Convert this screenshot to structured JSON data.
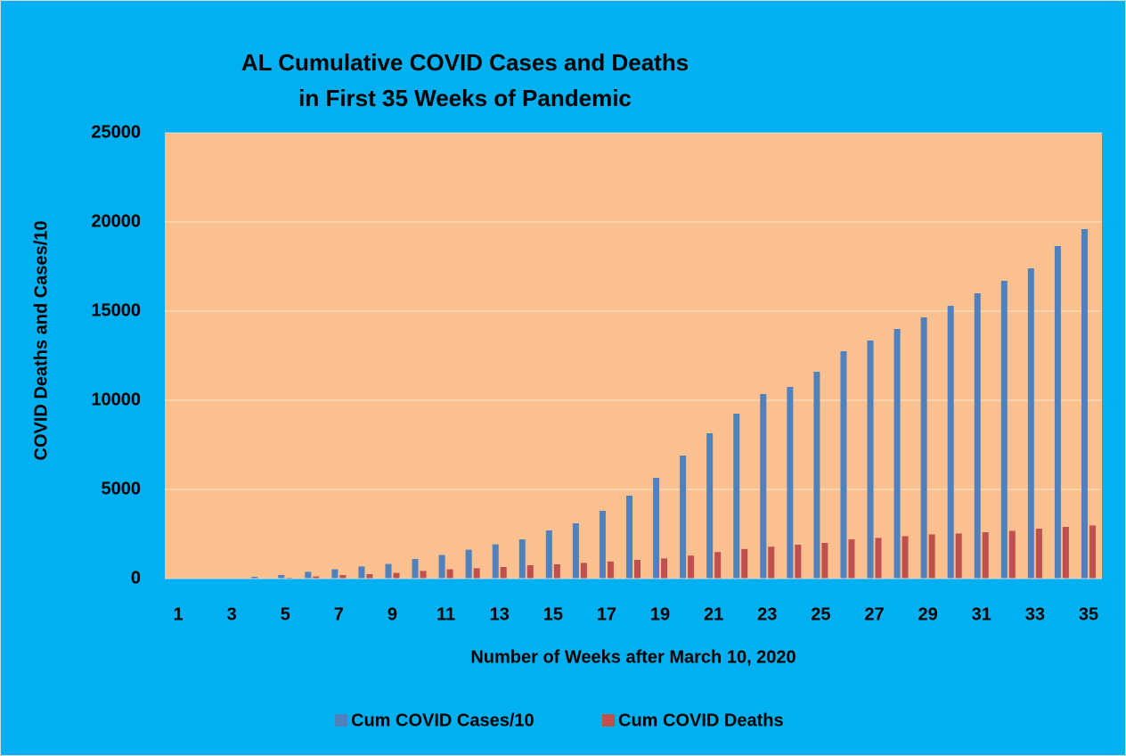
{
  "chart_data": {
    "type": "bar",
    "title": [
      "AL Cumulative COVID Cases and Deaths",
      "in First 35 Weeks of Pandemic"
    ],
    "x_label": "Number of Weeks after March 10, 2020",
    "y_label": "COVID Deaths and Cases/10",
    "categories": [
      "1",
      null,
      "3",
      null,
      "5",
      null,
      "7",
      null,
      "9",
      null,
      "11",
      null,
      "13",
      null,
      "15",
      null,
      "17",
      null,
      "19",
      null,
      "21",
      null,
      "23",
      null,
      "25",
      null,
      "27",
      null,
      "29",
      null,
      "31",
      null,
      "33",
      null,
      "35"
    ],
    "series": [
      {
        "name": "Cum COVID Cases/10",
        "color": "#4f81bd",
        "values": [
          0,
          0,
          5,
          100,
          200,
          380,
          520,
          680,
          820,
          1100,
          1320,
          1620,
          1920,
          2200,
          2700,
          3100,
          3800,
          4650,
          5650,
          6900,
          8150,
          9250,
          10350,
          10750,
          11600,
          12750,
          13350,
          14000,
          14650,
          15300,
          16000,
          16700,
          17400,
          18650,
          19600
        ]
      },
      {
        "name": "Cum COVID Deaths",
        "color": "#c0504d",
        "values": [
          0,
          0,
          0,
          5,
          50,
          120,
          200,
          250,
          320,
          430,
          520,
          580,
          650,
          750,
          800,
          880,
          960,
          1050,
          1130,
          1290,
          1490,
          1660,
          1790,
          1900,
          2000,
          2200,
          2280,
          2380,
          2480,
          2530,
          2600,
          2680,
          2800,
          2900,
          2980
        ]
      }
    ],
    "ylim": [
      0,
      25000
    ],
    "yticks": [
      0,
      5000,
      10000,
      15000,
      20000,
      25000
    ],
    "grid": true,
    "legend": "bottom"
  }
}
